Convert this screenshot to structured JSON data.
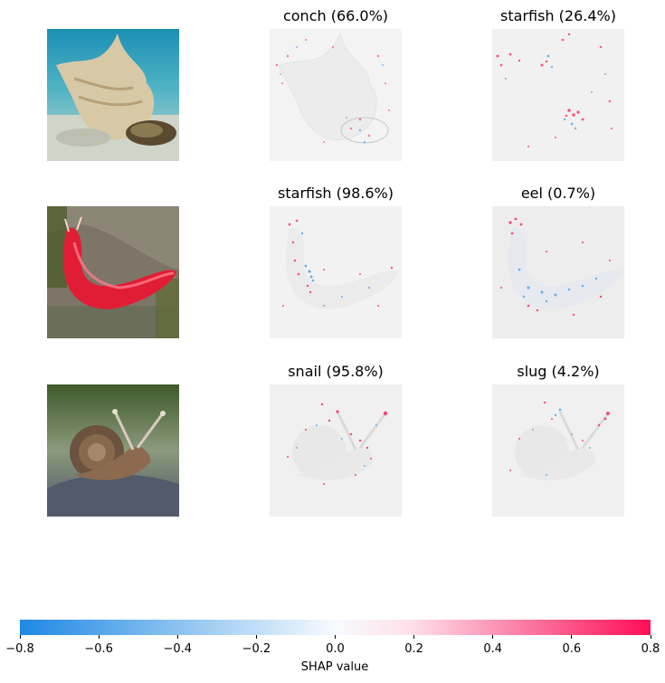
{
  "chart_data": {
    "type": "heatmap",
    "rows": [
      {
        "input_image": "conch-shell-photo",
        "explanations": [
          {
            "title": "conch (66.0%)",
            "class": "conch",
            "probability": 66.0
          },
          {
            "title": "starfish (26.4%)",
            "class": "starfish",
            "probability": 26.4
          }
        ]
      },
      {
        "input_image": "red-sea-slug-photo",
        "explanations": [
          {
            "title": "starfish (98.6%)",
            "class": "starfish",
            "probability": 98.6
          },
          {
            "title": "eel (0.7%)",
            "class": "eel",
            "probability": 0.7
          }
        ]
      },
      {
        "input_image": "snail-photo",
        "explanations": [
          {
            "title": "snail (95.8%)",
            "class": "snail",
            "probability": 95.8
          },
          {
            "title": "slug (4.2%)",
            "class": "slug",
            "probability": 4.2
          }
        ]
      }
    ],
    "colorbar": {
      "label": "SHAP value",
      "range": [
        -0.8,
        0.8
      ],
      "ticks": [
        -0.8,
        -0.6,
        -0.4,
        -0.2,
        0.0,
        0.2,
        0.4,
        0.6,
        0.8
      ],
      "tick_labels": [
        "−0.8",
        "−0.6",
        "−0.4",
        "−0.2",
        "0.0",
        "0.2",
        "0.4",
        "0.6",
        "0.8"
      ],
      "colors": {
        "negative": "#1e88e5",
        "zero": "#ffffff",
        "positive": "#ff0d57"
      }
    }
  }
}
